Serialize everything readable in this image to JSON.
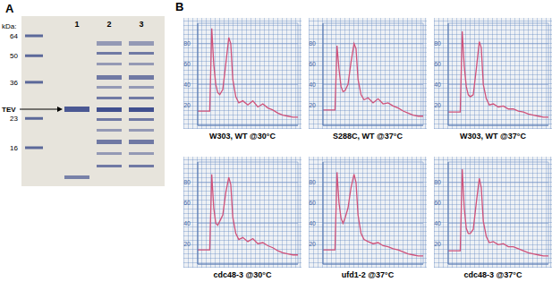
{
  "panel_a": {
    "label": "A",
    "unit_label": "kDa:",
    "ladder": [
      64,
      50,
      36,
      23,
      16
    ],
    "lanes": [
      1,
      2,
      3
    ],
    "band_label": "TEV"
  },
  "panel_b_label": "B",
  "chart_data": [
    {
      "type": "line",
      "title": "W303, WT @30°C",
      "x": [
        0,
        5,
        10,
        12,
        14,
        16,
        18,
        20,
        22,
        25,
        28,
        31,
        33,
        35,
        38,
        41,
        45,
        50,
        55,
        60,
        65,
        70,
        75,
        80,
        85,
        90,
        95,
        100
      ],
      "values": [
        14,
        14,
        14,
        14,
        95,
        60,
        40,
        32,
        30,
        35,
        60,
        86,
        80,
        45,
        28,
        22,
        24,
        20,
        24,
        18,
        21,
        17,
        15,
        12,
        10,
        9,
        8,
        8
      ],
      "color": "#d0527a",
      "xlim": [
        0,
        100
      ],
      "ylim": [
        0,
        100
      ],
      "yticks": [
        20,
        40,
        60,
        80
      ],
      "grid": true,
      "tick_labels": "y"
    },
    {
      "type": "line",
      "title": "S288C, WT @37°C",
      "x": [
        0,
        5,
        10,
        12,
        14,
        16,
        18,
        20,
        22,
        25,
        28,
        31,
        33,
        35,
        38,
        41,
        45,
        50,
        55,
        60,
        65,
        70,
        75,
        80,
        85,
        90,
        95,
        100
      ],
      "values": [
        15,
        15,
        15,
        15,
        78,
        55,
        38,
        33,
        34,
        40,
        62,
        80,
        75,
        45,
        30,
        25,
        27,
        22,
        26,
        21,
        22,
        19,
        17,
        14,
        12,
        10,
        9,
        9
      ],
      "color": "#d0527a",
      "xlim": [
        0,
        100
      ],
      "ylim": [
        0,
        100
      ],
      "yticks": [
        20,
        40,
        60,
        80
      ],
      "grid": true,
      "tick_labels": "y"
    },
    {
      "type": "line",
      "title": "W303, WT @37°C",
      "x": [
        0,
        5,
        10,
        12,
        14,
        16,
        18,
        20,
        22,
        25,
        28,
        31,
        33,
        35,
        38,
        41,
        45,
        50,
        55,
        60,
        65,
        70,
        75,
        80,
        85,
        90,
        95,
        100
      ],
      "values": [
        13,
        13,
        13,
        13,
        92,
        58,
        38,
        30,
        28,
        30,
        55,
        82,
        76,
        40,
        26,
        20,
        21,
        18,
        19,
        16,
        16,
        14,
        13,
        11,
        10,
        9,
        8,
        8
      ],
      "color": "#d0527a",
      "xlim": [
        0,
        100
      ],
      "ylim": [
        0,
        100
      ],
      "yticks": [
        20,
        40,
        60,
        80
      ],
      "grid": true,
      "tick_labels": "y"
    },
    {
      "type": "line",
      "title": "cdc48-3 @30°C",
      "x": [
        0,
        5,
        10,
        12,
        14,
        16,
        18,
        20,
        22,
        25,
        28,
        31,
        33,
        35,
        38,
        41,
        45,
        50,
        55,
        60,
        65,
        70,
        75,
        80,
        85,
        90,
        95,
        100
      ],
      "values": [
        14,
        14,
        14,
        14,
        88,
        55,
        40,
        38,
        42,
        48,
        70,
        85,
        78,
        46,
        30,
        24,
        26,
        22,
        25,
        20,
        21,
        18,
        16,
        13,
        11,
        10,
        9,
        9
      ],
      "color": "#d0527a",
      "xlim": [
        0,
        100
      ],
      "ylim": [
        0,
        100
      ],
      "yticks": [
        20,
        40,
        60,
        80
      ],
      "grid": true,
      "tick_labels": "y"
    },
    {
      "type": "line",
      "title": "ufd1-2 @37°C",
      "x": [
        0,
        5,
        10,
        12,
        14,
        16,
        18,
        20,
        22,
        25,
        28,
        31,
        33,
        35,
        38,
        41,
        45,
        50,
        55,
        60,
        65,
        70,
        75,
        80,
        85,
        90,
        95,
        100
      ],
      "values": [
        14,
        14,
        14,
        14,
        90,
        60,
        45,
        40,
        45,
        55,
        75,
        88,
        80,
        48,
        30,
        24,
        22,
        20,
        21,
        18,
        17,
        15,
        14,
        12,
        10,
        9,
        8,
        8
      ],
      "color": "#d0527a",
      "xlim": [
        0,
        100
      ],
      "ylim": [
        0,
        100
      ],
      "yticks": [
        20,
        40,
        60,
        80
      ],
      "grid": true,
      "tick_labels": "y"
    },
    {
      "type": "line",
      "title": "cdc48-3 @37°C",
      "x": [
        0,
        5,
        10,
        12,
        14,
        16,
        18,
        20,
        22,
        25,
        28,
        31,
        33,
        35,
        38,
        41,
        45,
        50,
        55,
        60,
        65,
        70,
        75,
        80,
        85,
        90,
        95,
        100
      ],
      "values": [
        13,
        13,
        13,
        13,
        93,
        55,
        35,
        30,
        30,
        34,
        60,
        84,
        75,
        42,
        27,
        21,
        22,
        19,
        20,
        17,
        17,
        15,
        13,
        11,
        10,
        9,
        8,
        8
      ],
      "color": "#d0527a",
      "xlim": [
        0,
        100
      ],
      "ylim": [
        0,
        100
      ],
      "yticks": [
        20,
        40,
        60,
        80
      ],
      "grid": true,
      "tick_labels": "y"
    }
  ]
}
